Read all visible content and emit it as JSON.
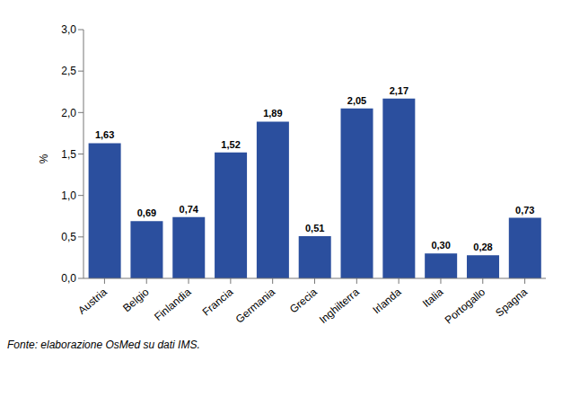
{
  "chart_data": {
    "type": "bar",
    "y_label": "%",
    "source": "Fonte: elaborazione OsMed su dati IMS.",
    "categories": [
      "Austria",
      "Belgio",
      "Finlandia",
      "Francia",
      "Germania",
      "Grecia",
      "Inghilterra",
      "Irlanda",
      "Italia",
      "Portogallo",
      "Spagna"
    ],
    "values": [
      1.63,
      0.69,
      0.74,
      1.52,
      1.89,
      0.51,
      2.05,
      2.17,
      0.3,
      0.28,
      0.73
    ],
    "value_labels": [
      "1,63",
      "0,69",
      "0,74",
      "1,52",
      "1,89",
      "0,51",
      "2,05",
      "2,17",
      "0,30",
      "0,28",
      "0,73"
    ],
    "color": "#2b4f9e",
    "ylim": [
      0,
      3
    ],
    "yticks": [
      {
        "value": 0,
        "label": "0,0"
      },
      {
        "value": 0.5,
        "label": "0,5"
      },
      {
        "value": 1,
        "label": "1,0"
      },
      {
        "value": 1.5,
        "label": "1,5"
      },
      {
        "value": 2,
        "label": "2,0"
      },
      {
        "value": 2.5,
        "label": "2,5"
      },
      {
        "value": 3,
        "label": "3,0"
      }
    ],
    "grid": false,
    "data_labels": true
  }
}
